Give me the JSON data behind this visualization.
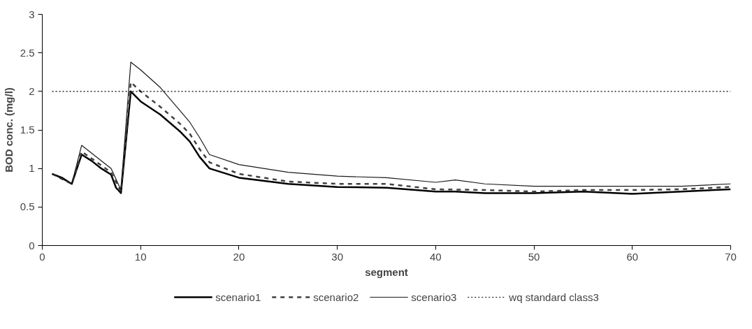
{
  "chart_data": {
    "type": "line",
    "xlabel": "segment",
    "ylabel": "BOD conc. (mg/l)",
    "xlim": [
      0,
      70
    ],
    "ylim": [
      0,
      3
    ],
    "xticks": [
      0,
      10,
      20,
      30,
      40,
      50,
      60,
      70
    ],
    "yticks": [
      0,
      0.5,
      1,
      1.5,
      2,
      2.5,
      3
    ],
    "grid": false,
    "legend": "bottom",
    "marker": "none",
    "series": [
      {
        "name": "scenario1",
        "color": "#000000",
        "line_style": "solid",
        "x": [
          1,
          2,
          3,
          4,
          5,
          6,
          7,
          7.5,
          8,
          9,
          10,
          12,
          14,
          15,
          16,
          17,
          20,
          25,
          30,
          35,
          40,
          42,
          45,
          50,
          55,
          60,
          65,
          70
        ],
        "values": [
          0.93,
          0.88,
          0.8,
          1.18,
          1.1,
          1.0,
          0.92,
          0.75,
          0.68,
          2.0,
          1.87,
          1.7,
          1.48,
          1.35,
          1.15,
          1.0,
          0.88,
          0.8,
          0.76,
          0.75,
          0.7,
          0.7,
          0.68,
          0.68,
          0.7,
          0.67,
          0.7,
          0.73
        ]
      },
      {
        "name": "scenario2",
        "color": "#404040",
        "line_style": "dashed",
        "x": [
          1,
          3,
          4,
          7,
          8,
          9,
          10,
          12,
          14,
          15,
          16,
          17,
          20,
          25,
          30,
          35,
          40,
          45,
          50,
          55,
          60,
          65,
          70
        ],
        "values": [
          0.93,
          0.8,
          1.22,
          0.95,
          0.7,
          2.12,
          2.0,
          1.8,
          1.58,
          1.45,
          1.25,
          1.08,
          0.93,
          0.83,
          0.8,
          0.8,
          0.73,
          0.72,
          0.7,
          0.72,
          0.72,
          0.73,
          0.76
        ]
      },
      {
        "name": "scenario3",
        "color": "#1a1a1a",
        "line_style": "solid",
        "x": [
          1,
          3,
          4,
          7,
          8,
          9,
          10,
          12,
          14,
          15,
          16,
          17,
          20,
          25,
          30,
          35,
          40,
          42,
          45,
          50,
          55,
          60,
          65,
          70
        ],
        "values": [
          0.93,
          0.8,
          1.3,
          1.0,
          0.72,
          2.38,
          2.28,
          2.05,
          1.75,
          1.6,
          1.4,
          1.18,
          1.05,
          0.95,
          0.9,
          0.88,
          0.82,
          0.85,
          0.8,
          0.77,
          0.77,
          0.77,
          0.77,
          0.8
        ]
      },
      {
        "name": "wq standard class3",
        "color": "#000000",
        "line_style": "dotted",
        "x": [
          1,
          70
        ],
        "values": [
          2,
          2
        ]
      }
    ]
  }
}
